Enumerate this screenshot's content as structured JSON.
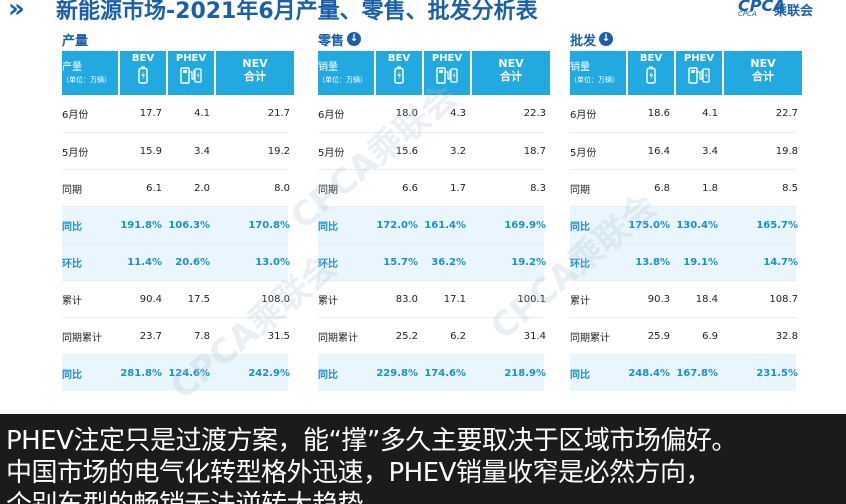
{
  "header": {
    "chevrons": "»",
    "title": "新能源市场-2021年6月产量、零售、批发分析表",
    "logo_en": "CPCA",
    "logo_cn": "乘联会",
    "logo_sub": "CPCA"
  },
  "watermark": "CPCA乘联会",
  "columns": {
    "bev": "BEV",
    "phev": "PHEV",
    "nev_line1": "NEV",
    "nev_line2": "合计",
    "unit": "（单位：万辆）"
  },
  "panels": [
    {
      "title": "产量",
      "has_arrow": false,
      "header_label": "产量",
      "rows": [
        {
          "label": "6月份",
          "bev": "17.7",
          "phev": "4.1",
          "nev": "21.7",
          "pct": false
        },
        {
          "label": "5月份",
          "bev": "15.9",
          "phev": "3.4",
          "nev": "19.2",
          "pct": false
        },
        {
          "label": "同期",
          "bev": "6.1",
          "phev": "2.0",
          "nev": "8.0",
          "pct": false
        },
        {
          "label": "同比",
          "bev": "191.8%",
          "phev": "106.3%",
          "nev": "170.8%",
          "pct": true
        },
        {
          "label": "环比",
          "bev": "11.4%",
          "phev": "20.6%",
          "nev": "13.0%",
          "pct": true
        },
        {
          "label": "累计",
          "bev": "90.4",
          "phev": "17.5",
          "nev": "108.0",
          "pct": false
        },
        {
          "label": "同期累计",
          "bev": "23.7",
          "phev": "7.8",
          "nev": "31.5",
          "pct": false
        },
        {
          "label": "同比",
          "bev": "281.8%",
          "phev": "124.6%",
          "nev": "242.9%",
          "pct": true
        }
      ]
    },
    {
      "title": "零售",
      "has_arrow": true,
      "header_label": "销量",
      "rows": [
        {
          "label": "6月份",
          "bev": "18.0",
          "phev": "4.3",
          "nev": "22.3",
          "pct": false
        },
        {
          "label": "5月份",
          "bev": "15.6",
          "phev": "3.2",
          "nev": "18.7",
          "pct": false
        },
        {
          "label": "同期",
          "bev": "6.6",
          "phev": "1.7",
          "nev": "8.3",
          "pct": false
        },
        {
          "label": "同比",
          "bev": "172.0%",
          "phev": "161.4%",
          "nev": "169.9%",
          "pct": true
        },
        {
          "label": "环比",
          "bev": "15.7%",
          "phev": "36.2%",
          "nev": "19.2%",
          "pct": true
        },
        {
          "label": "累计",
          "bev": "83.0",
          "phev": "17.1",
          "nev": "100.1",
          "pct": false
        },
        {
          "label": "同期累计",
          "bev": "25.2",
          "phev": "6.2",
          "nev": "31.4",
          "pct": false
        },
        {
          "label": "同比",
          "bev": "229.8%",
          "phev": "174.6%",
          "nev": "218.9%",
          "pct": true
        }
      ]
    },
    {
      "title": "批发",
      "has_arrow": true,
      "header_label": "销量",
      "rows": [
        {
          "label": "6月份",
          "bev": "18.6",
          "phev": "4.1",
          "nev": "22.7",
          "pct": false
        },
        {
          "label": "5月份",
          "bev": "16.4",
          "phev": "3.4",
          "nev": "19.8",
          "pct": false
        },
        {
          "label": "同期",
          "bev": "6.8",
          "phev": "1.8",
          "nev": "8.5",
          "pct": false
        },
        {
          "label": "同比",
          "bev": "175.0%",
          "phev": "130.4%",
          "nev": "165.7%",
          "pct": true
        },
        {
          "label": "环比",
          "bev": "13.8%",
          "phev": "19.1%",
          "nev": "14.7%",
          "pct": true
        },
        {
          "label": "累计",
          "bev": "90.3",
          "phev": "18.4",
          "nev": "108.7",
          "pct": false
        },
        {
          "label": "同期累计",
          "bev": "25.9",
          "phev": "6.9",
          "nev": "32.8",
          "pct": false
        },
        {
          "label": "同比",
          "bev": "248.4%",
          "phev": "167.8%",
          "nev": "231.5%",
          "pct": true
        }
      ]
    }
  ],
  "subtitles": {
    "line1": "PHEV注定只是过渡方案，能“撑”多久主要取决于区域市场偏好。",
    "line2": "中国市场的电气化转型格外迅速，PHEV销量收窄是必然方向，",
    "line3": "个别车型的畅销无法逆转大趋势"
  },
  "colors": {
    "brand_blue": "#1b5fa8",
    "header_cyan": "#22a9e0",
    "pct_text": "#1b8fd0",
    "pct_row_bg": "#eaf6fd",
    "subtitle_bg": "#080808"
  }
}
